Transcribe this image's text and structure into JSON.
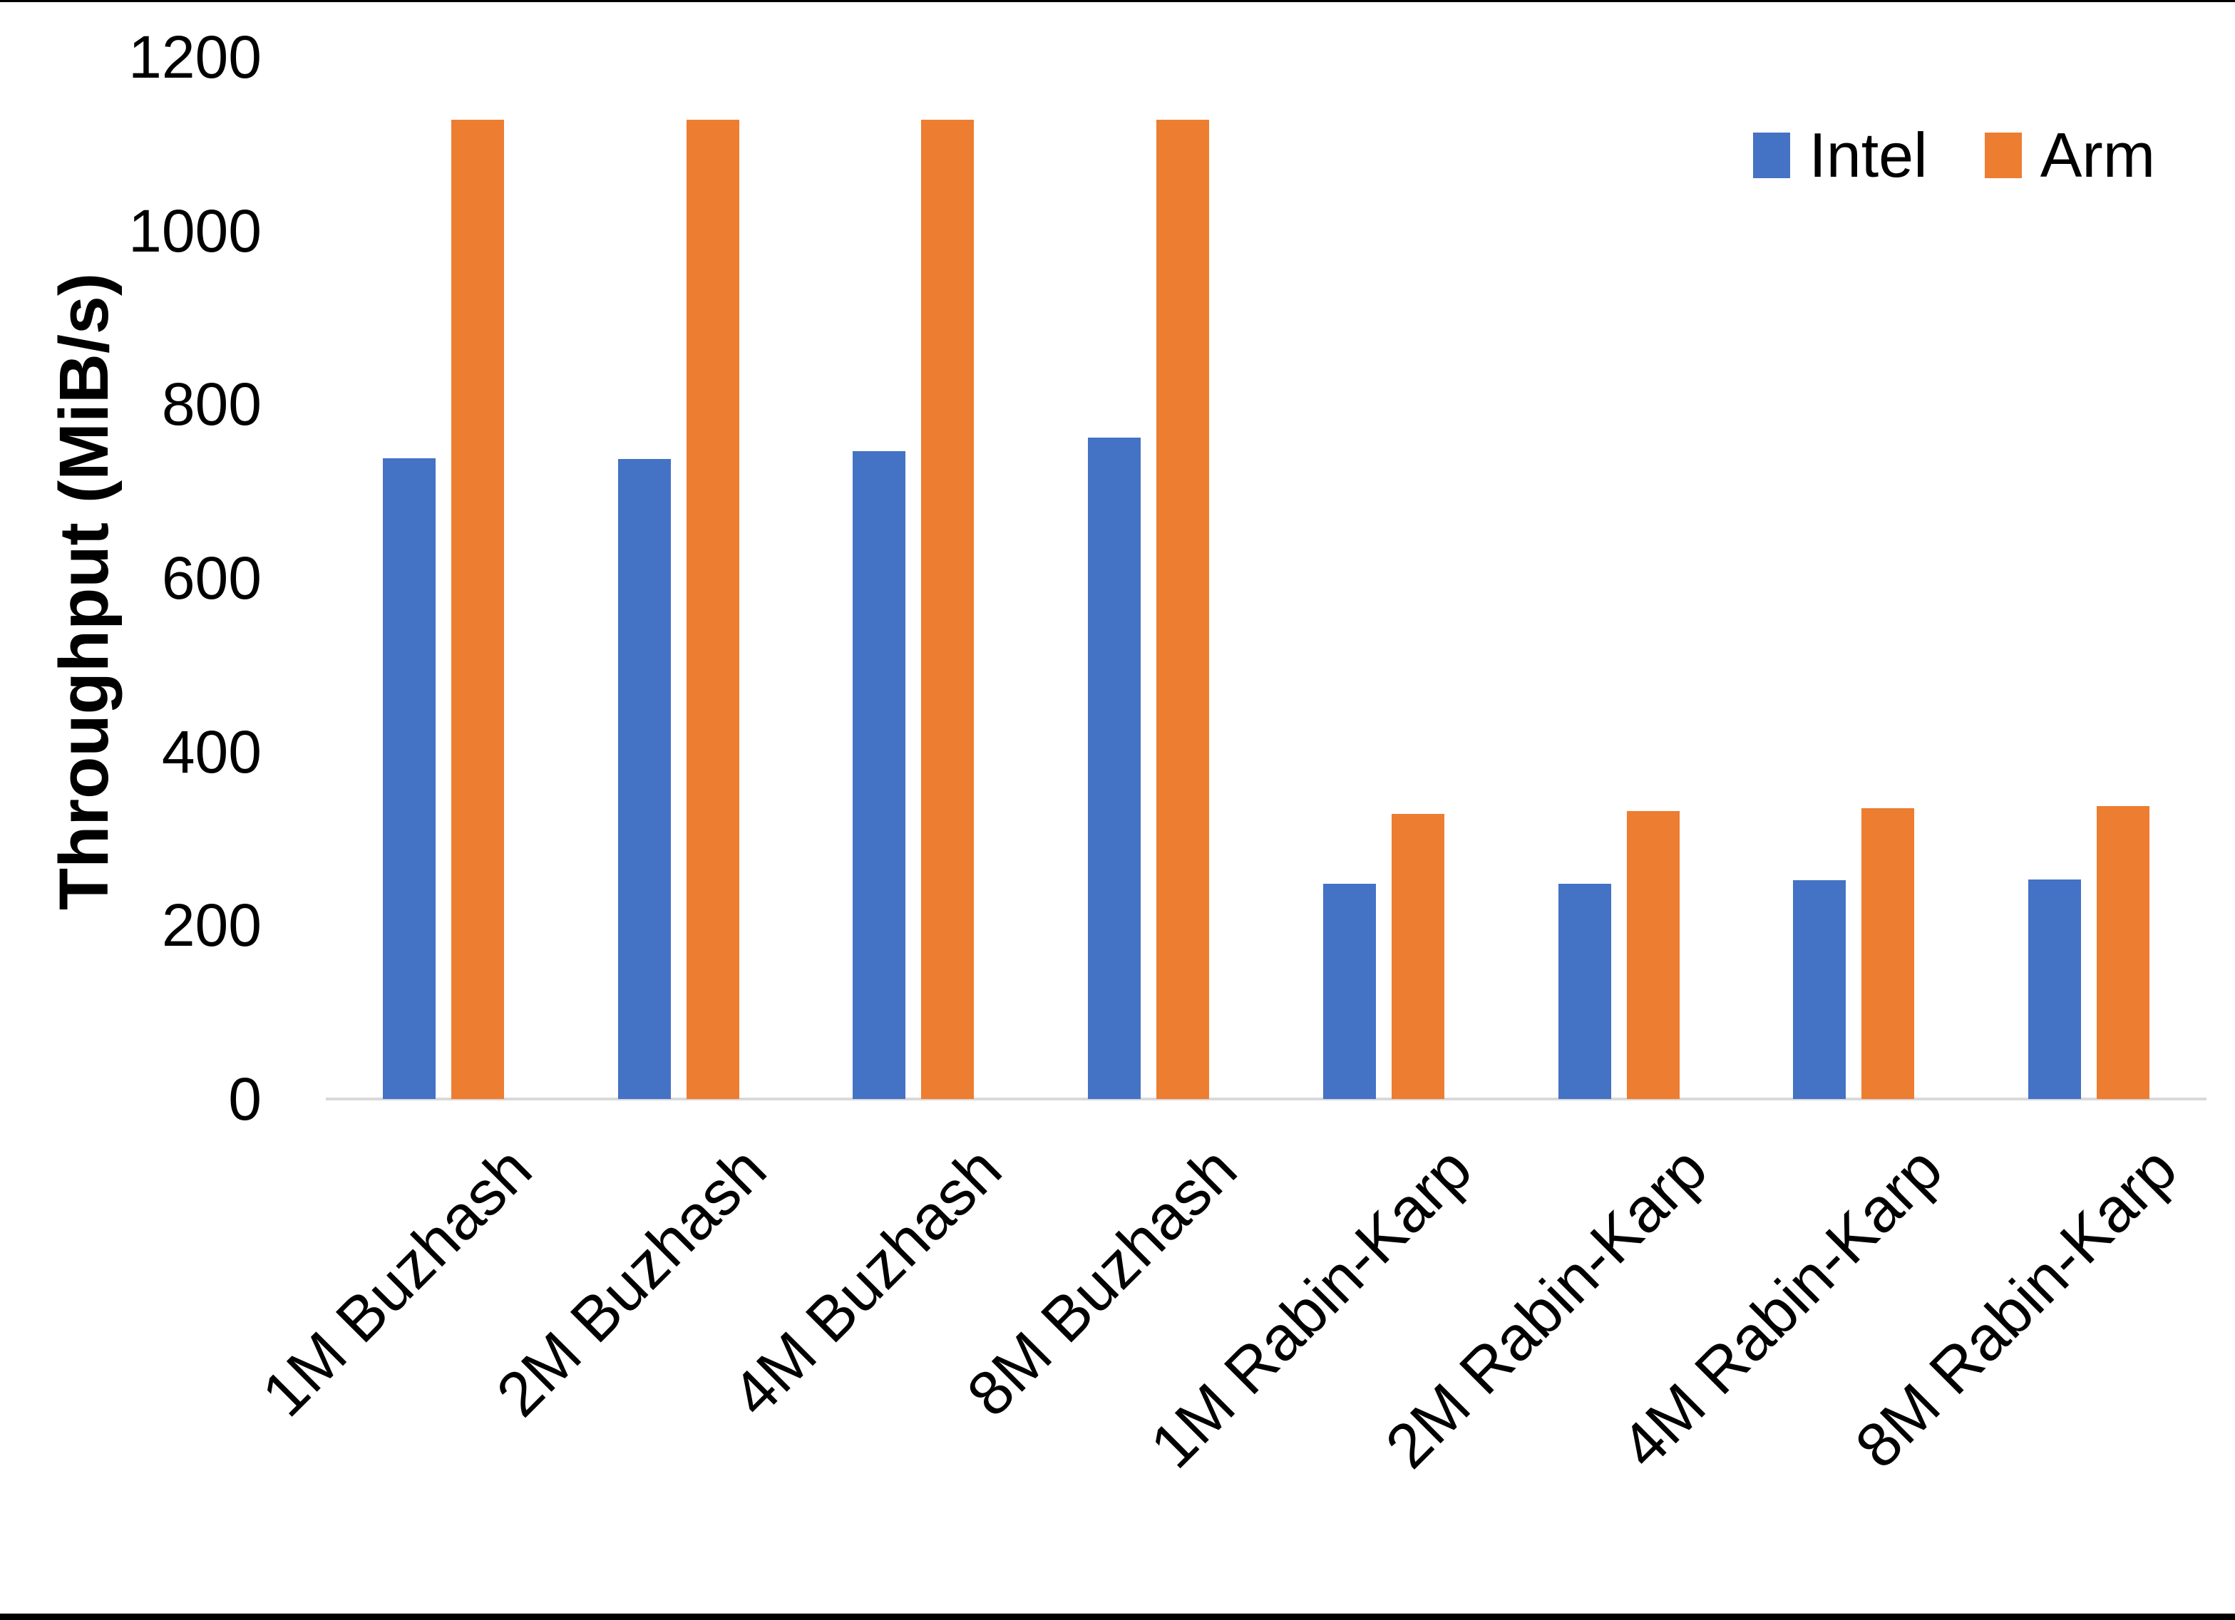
{
  "chart_data": {
    "type": "bar",
    "title": "",
    "xlabel": "",
    "ylabel": "Throughput (MiB/s)",
    "categories": [
      "1M Buzhash",
      "2M Buzhash",
      "4M Buzhash",
      "8M Buzhash",
      "1M Rabin-Karp",
      "2M Rabin-Karp",
      "4M Rabin-Karp",
      "8M Rabin-Karp"
    ],
    "series": [
      {
        "name": "Intel",
        "color": "#4472C4",
        "values": [
          738,
          737,
          746,
          762,
          248,
          248,
          252,
          253
        ]
      },
      {
        "name": "Arm",
        "color": "#ED7D31",
        "values": [
          1128,
          1128,
          1128,
          1128,
          328,
          332,
          335,
          337
        ]
      }
    ],
    "ylim": [
      0,
      1200
    ],
    "ytick_step": 200,
    "grid": false,
    "legend_position": "top-right",
    "axis_line_color": "#D9D9D9",
    "text_color": "#000000"
  }
}
